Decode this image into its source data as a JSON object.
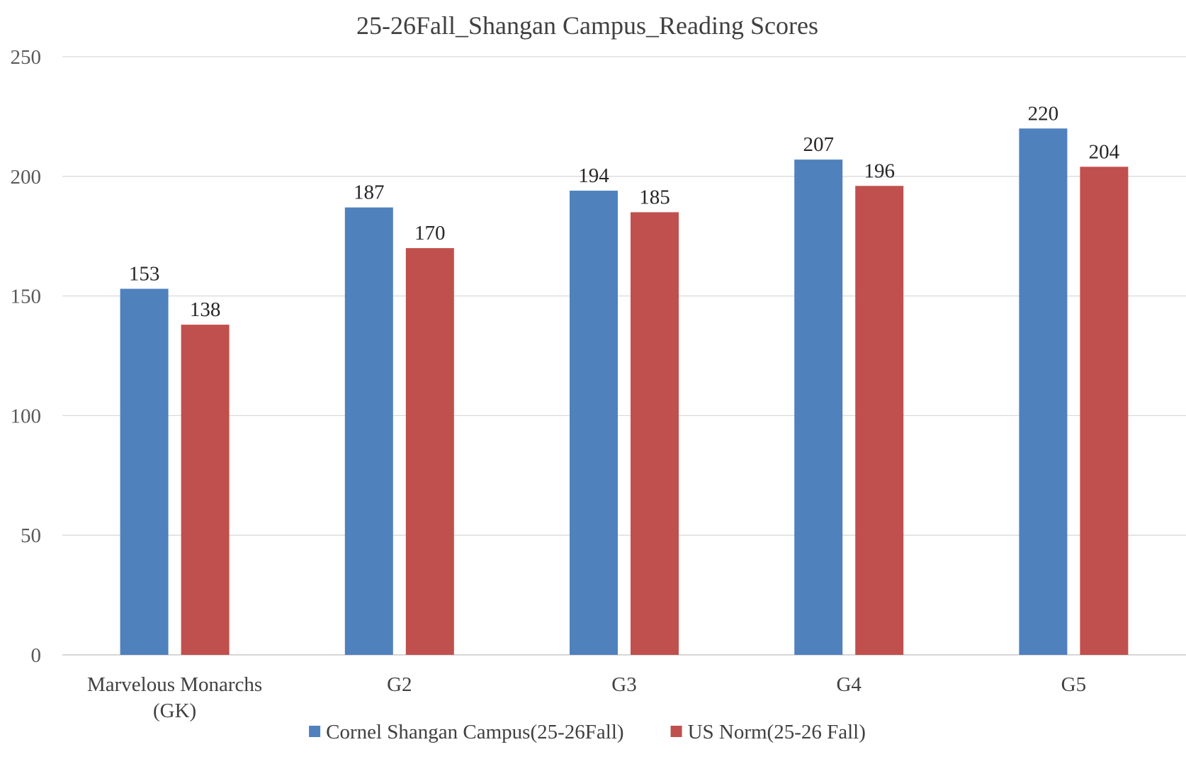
{
  "chart_data": {
    "type": "bar",
    "title": "25-26Fall_Shangan Campus_Reading Scores",
    "categories": [
      [
        "Marvelous Monarchs",
        "(GK)"
      ],
      [
        "G2"
      ],
      [
        "G3"
      ],
      [
        "G4"
      ],
      [
        "G5"
      ]
    ],
    "series": [
      {
        "name": "Cornel Shangan Campus(25-26Fall)",
        "values": [
          153,
          187,
          194,
          207,
          220
        ],
        "color": "#4f81bd"
      },
      {
        "name": "US Norm(25-26 Fall)",
        "values": [
          138,
          170,
          185,
          196,
          204
        ],
        "color": "#c0504d"
      }
    ],
    "ylim": [
      0,
      250
    ],
    "yticks": [
      0,
      50,
      100,
      150,
      200,
      250
    ],
    "grid": true,
    "legend": "bottom",
    "data_labels": true
  }
}
